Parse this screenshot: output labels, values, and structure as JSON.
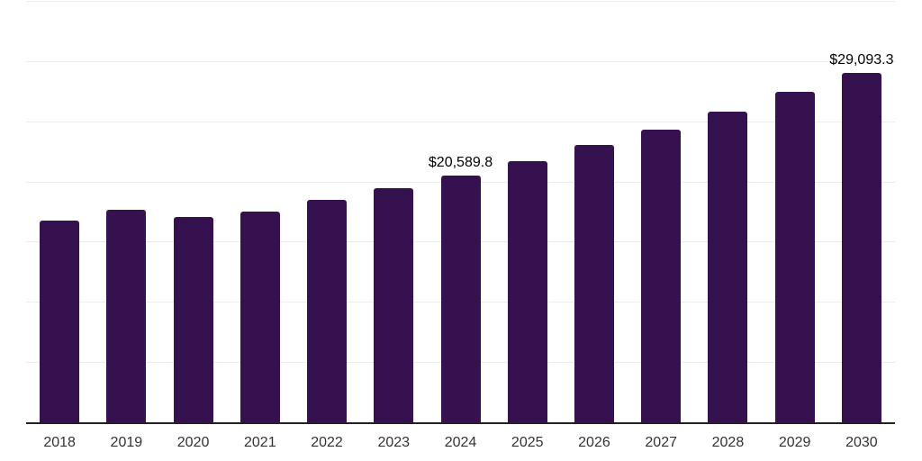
{
  "chart": {
    "background_color": "#ffffff",
    "bar_color": "#361150",
    "gridline_color": "#ededed",
    "axis_line_color": "#222222",
    "tick_label_color": "#333333",
    "data_label_color": "#000000"
  },
  "chart_data": {
    "type": "bar",
    "title": "",
    "xlabel": "",
    "ylabel": "",
    "categories": [
      "2018",
      "2019",
      "2020",
      "2021",
      "2022",
      "2023",
      "2024",
      "2025",
      "2026",
      "2027",
      "2028",
      "2029",
      "2030"
    ],
    "values": [
      16800,
      17700,
      17150,
      17600,
      18550,
      19500,
      20589.8,
      21800,
      23100,
      24400,
      25900,
      27550,
      29093.3
    ],
    "point_labels": [
      null,
      null,
      null,
      null,
      null,
      null,
      "$20,589.8",
      null,
      null,
      null,
      null,
      null,
      "$29,093.3"
    ],
    "ylim": [
      0,
      35000
    ],
    "grid_step": 5000,
    "grid": "horizontal",
    "legend_position": "none"
  }
}
